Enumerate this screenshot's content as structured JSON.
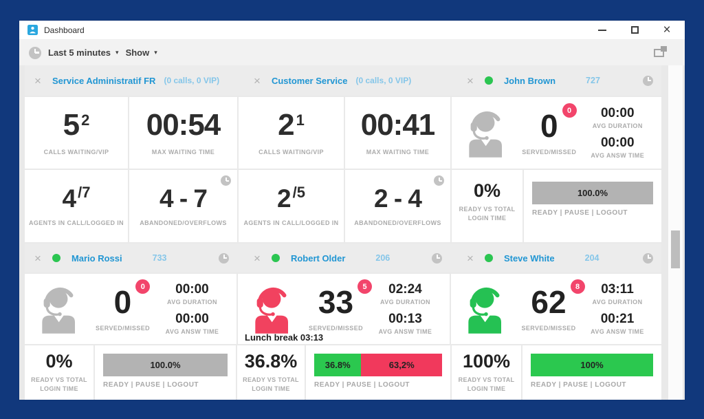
{
  "titlebar": {
    "title": "Dashboard"
  },
  "window_controls": {
    "close": "×"
  },
  "toolbar": {
    "time_filter": "Last 5 minutes",
    "show_menu": "Show"
  },
  "labels": {
    "calls_waiting": "CALLS WAITING/VIP",
    "max_waiting": "MAX WAITING TIME",
    "agents_in_call": "AGENTS IN CALL/LOGGED IN",
    "abandoned": "ABANDONED/OVERFLOWS",
    "served_missed": "SERVED/MISSED",
    "avg_duration": "AVG DURATION",
    "avg_answ": "AVG ANSW TIME",
    "ready_vs_total": "READY VS TOTAL LOGIN TIME",
    "ready_pause_logout": "READY | PAUSE | LOGOUT"
  },
  "colors": {
    "gray": "#b3b3b3",
    "green": "#2bc84f",
    "red": "#f1395c",
    "badge": "#f2456b",
    "link_blue": "#2196d3",
    "light_blue": "#85c6e9",
    "frame_navy": "#11387c",
    "status_green_dot": "#2bc551"
  },
  "queues": [
    {
      "name": "Service Administratif FR",
      "info": "(0 calls, 0 VIP)",
      "calls_waiting": "5",
      "vip": "2",
      "max_waiting": "00:54",
      "in_call": "4",
      "logged_in": "/7",
      "abandoned": "4 - 7"
    },
    {
      "name": "Customer Service",
      "info": "(0 calls, 0 VIP)",
      "calls_waiting": "2",
      "vip": "1",
      "max_waiting": "00:41",
      "in_call": "2",
      "logged_in": "/5",
      "abandoned": "2 - 4"
    }
  ],
  "agents": [
    {
      "name": "John Brown",
      "ext": "727",
      "served": "0",
      "badge": "0",
      "avg_duration": "00:00",
      "avg_answ": "00:00",
      "icon_color": "#b9b9b9",
      "ready_pct": "0%",
      "bar": [
        {
          "text": "100.0%",
          "color": "gray",
          "pct": 100
        }
      ]
    },
    {
      "name": "Mario Rossi",
      "ext": "733",
      "served": "0",
      "badge": "0",
      "avg_duration": "00:00",
      "avg_answ": "00:00",
      "icon_color": "#b9b9b9",
      "ready_pct": "0%",
      "bar": [
        {
          "text": "100.0%",
          "color": "gray",
          "pct": 100
        }
      ]
    },
    {
      "name": "Robert Older",
      "ext": "206",
      "served": "33",
      "badge": "5",
      "avg_duration": "02:24",
      "avg_answ": "00:13",
      "icon_color": "#f1425f",
      "note": "Lunch break 03:13",
      "ready_pct": "36.8%",
      "bar": [
        {
          "text": "36.8%",
          "color": "green",
          "pct": 36.8
        },
        {
          "text": "63,2%",
          "color": "red",
          "pct": 63.2
        }
      ]
    },
    {
      "name": "Steve White",
      "ext": "204",
      "served": "62",
      "badge": "8",
      "avg_duration": "03:11",
      "avg_answ": "00:21",
      "icon_color": "#25c153",
      "ready_pct": "100%",
      "bar": [
        {
          "text": "100%",
          "color": "green",
          "pct": 100
        }
      ]
    }
  ]
}
